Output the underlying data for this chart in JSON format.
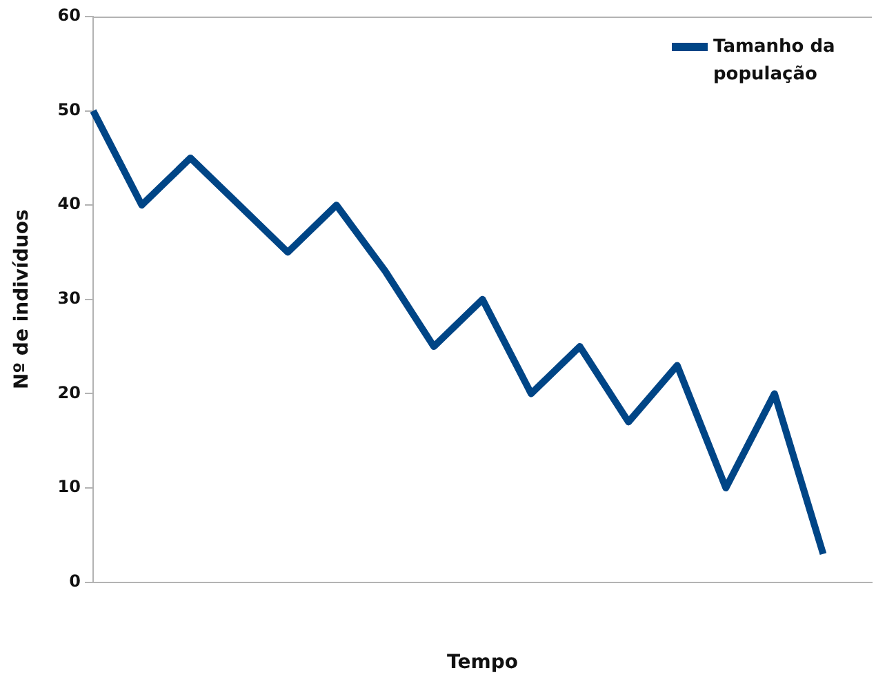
{
  "chart_data": {
    "type": "line",
    "xlabel": "Tempo",
    "ylabel": "Nº de indivíduos",
    "categories": [
      null,
      null,
      null,
      null,
      null,
      null,
      null,
      null,
      null,
      null,
      null,
      null,
      null,
      null,
      null,
      null,
      null
    ],
    "series": [
      {
        "name": "Tamanho da população",
        "color": "#004586",
        "values": [
          50,
          40,
          45,
          40,
          35,
          40,
          33,
          25,
          30,
          20,
          25,
          17,
          23,
          10,
          20,
          3,
          null
        ]
      }
    ],
    "ylim": [
      0,
      60
    ],
    "yticks": [
      0,
      10,
      20,
      30,
      40,
      50,
      60
    ],
    "grid": false,
    "legend": "top right",
    "marker": "none",
    "line_style": "solid"
  }
}
